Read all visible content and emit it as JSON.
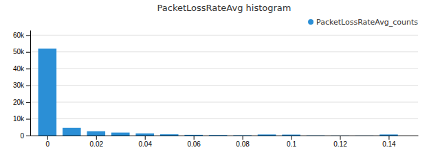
{
  "chart_data": {
    "type": "bar",
    "title": "PacketLossRateAvg histogram",
    "x": [
      0.0,
      0.01,
      0.02,
      0.03,
      0.04,
      0.05,
      0.06,
      0.07,
      0.08,
      0.09,
      0.1,
      0.11,
      0.12,
      0.13,
      0.14
    ],
    "series": [
      {
        "name": "PacketLossRateAvg_counts",
        "color": "#2b8fd6",
        "values": [
          52000,
          4600,
          2600,
          1800,
          1300,
          750,
          450,
          320,
          220,
          650,
          580,
          120,
          60,
          60,
          650
        ]
      }
    ],
    "xlim": [
      -0.007,
      0.152
    ],
    "xticks": [
      0,
      0.02,
      0.04,
      0.06,
      0.08,
      0.1,
      0.12,
      0.14
    ],
    "ylim": [
      0,
      63000
    ],
    "yticks": [
      0,
      {
        "value": 10000,
        "label": "10k"
      },
      {
        "value": 20000,
        "label": "20k"
      },
      {
        "value": 30000,
        "label": "30k"
      },
      {
        "value": 40000,
        "label": "40k"
      },
      {
        "value": 50000,
        "label": "50k"
      },
      {
        "value": 60000,
        "label": "60k"
      }
    ],
    "grid": true,
    "legend": "upper right"
  }
}
